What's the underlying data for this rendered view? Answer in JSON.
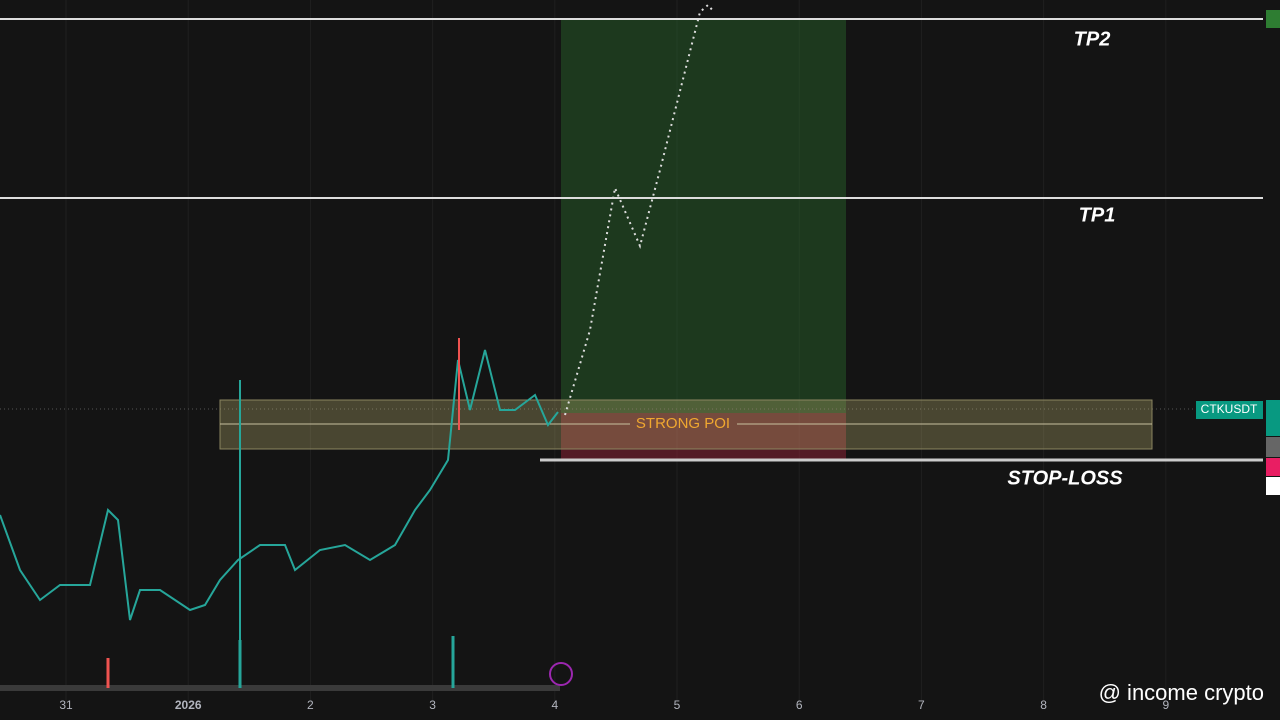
{
  "annotations": {
    "tp2": "TP2",
    "tp1": "TP1",
    "poi": "STRONG POI",
    "stop_loss": "STOP-LOSS"
  },
  "symbol": "CTKUSDT",
  "x_axis": [
    "31",
    "2026",
    "2",
    "3",
    "4",
    "5",
    "6",
    "7",
    "8",
    "9"
  ],
  "watermark": "@ income crypto"
}
